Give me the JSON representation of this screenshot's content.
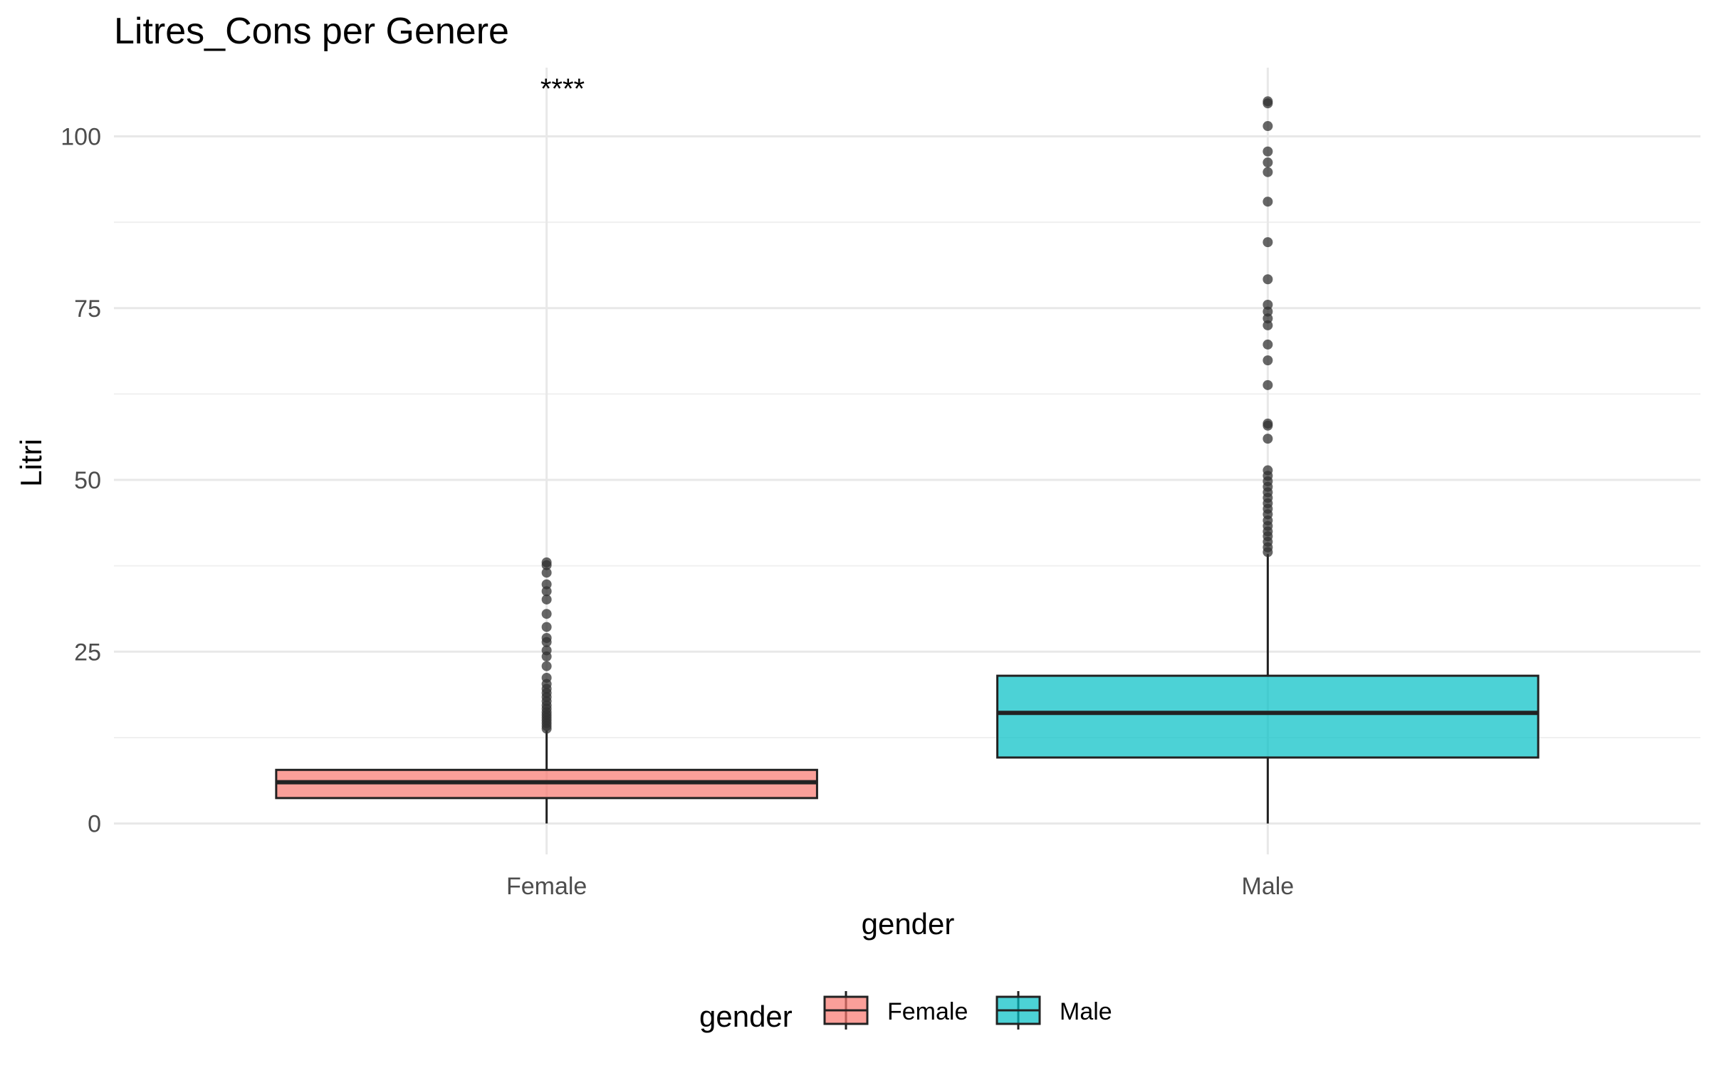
{
  "chart_data": {
    "type": "boxplot",
    "title": "Litres_Cons per Genere",
    "xlabel": "gender",
    "ylabel": "Litri",
    "ylim": [
      -4.5,
      110
    ],
    "yticks": [
      0,
      25,
      50,
      75,
      100
    ],
    "grid": true,
    "legend": {
      "title": "gender",
      "position": "bottom",
      "entries": [
        "Female",
        "Male"
      ]
    },
    "significance_label": "****",
    "categories": [
      "Female",
      "Male"
    ],
    "series": [
      {
        "name": "Female",
        "color": "#F8766D",
        "q1": 3.7,
        "median": 6.0,
        "q3": 7.8,
        "whisker_low": 0,
        "whisker_high": 13.5,
        "outliers": [
          13.8,
          14.2,
          14.6,
          15.0,
          15.4,
          15.8,
          16.2,
          16.7,
          17.2,
          17.8,
          18.4,
          19.0,
          19.6,
          20.3,
          21.2,
          22.9,
          24.3,
          25.2,
          26.4,
          27.0,
          28.6,
          30.5,
          32.6,
          33.8,
          34.8,
          36.5,
          37.6,
          38.0
        ]
      },
      {
        "name": "Male",
        "color": "#00BFC4",
        "q1": 9.6,
        "median": 16.1,
        "q3": 21.5,
        "whisker_low": 0,
        "whisker_high": 39.2,
        "outliers": [
          39.5,
          40.2,
          41.0,
          41.8,
          42.5,
          43.3,
          44.1,
          45.0,
          45.8,
          46.6,
          47.4,
          48.2,
          49.0,
          49.8,
          50.6,
          51.4,
          56.0,
          57.9,
          58.2,
          63.8,
          67.4,
          69.7,
          72.5,
          73.5,
          74.5,
          75.5,
          79.2,
          84.6,
          90.5,
          94.8,
          96.2,
          97.8,
          101.5,
          104.8,
          105.1
        ]
      }
    ]
  }
}
